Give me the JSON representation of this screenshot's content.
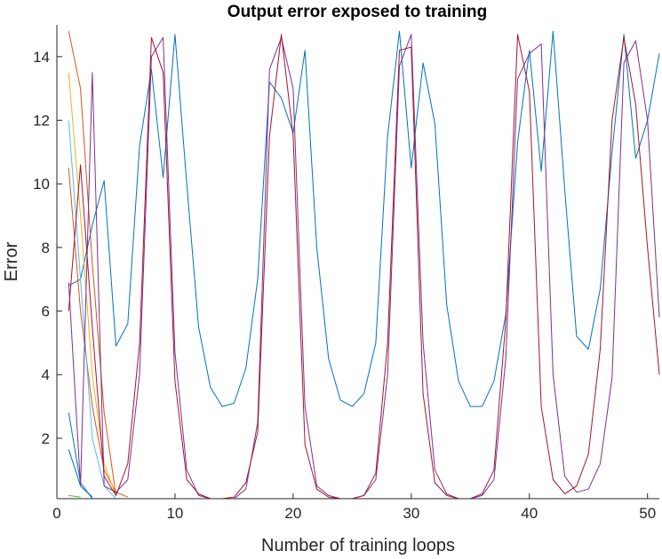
{
  "chart_data": {
    "type": "line",
    "title": "Output error exposed to training",
    "xlabel": "Number of training loops",
    "ylabel": "Error",
    "xlim": [
      0,
      51
    ],
    "ylim": [
      0.1,
      15
    ],
    "xticks": [
      0,
      10,
      20,
      30,
      40,
      50
    ],
    "yticks": [
      2,
      4,
      6,
      8,
      10,
      12,
      14
    ],
    "grid": false,
    "series": [
      {
        "color": "#0072BD",
        "x": [
          1,
          2,
          3,
          4,
          5,
          6,
          7,
          8,
          9,
          10,
          11,
          12,
          13,
          14,
          15,
          16,
          17,
          18,
          19,
          20,
          21,
          22,
          23,
          24,
          25,
          26,
          27,
          28,
          29,
          30,
          31,
          32,
          33,
          34,
          35,
          36,
          37,
          38,
          39,
          40,
          41,
          42,
          43,
          44,
          45,
          46,
          47,
          48,
          49,
          50,
          51
        ],
        "y": [
          6.8,
          7.0,
          8.7,
          10.1,
          4.9,
          5.6,
          11.2,
          13.6,
          10.2,
          14.7,
          10.0,
          5.5,
          3.6,
          3.0,
          3.1,
          4.2,
          7.0,
          13.2,
          12.7,
          11.6,
          14.2,
          8.0,
          4.5,
          3.2,
          3.0,
          3.4,
          5.0,
          11.5,
          14.8,
          10.5,
          13.8,
          11.9,
          6.2,
          3.8,
          3.0,
          3.0,
          3.8,
          5.9,
          11.3,
          14.2,
          10.4,
          14.8,
          9.8,
          5.2,
          4.8,
          6.7,
          11.0,
          14.7,
          10.8,
          12.0,
          14.1
        ]
      },
      {
        "color": "#0072BD",
        "x": [
          1,
          2,
          3
        ],
        "y": [
          1.65,
          0.5,
          0.15
        ]
      },
      {
        "color": "#0072BD",
        "x": [
          1,
          2,
          3
        ],
        "y": [
          2.8,
          0.6,
          0.1
        ]
      },
      {
        "color": "#D95319",
        "x": [
          1,
          2,
          3,
          4,
          5
        ],
        "y": [
          14.8,
          13.0,
          7.5,
          2.8,
          0.2
        ]
      },
      {
        "color": "#D95319",
        "x": [
          1,
          2,
          3,
          4,
          5,
          6
        ],
        "y": [
          10.5,
          6.0,
          3.0,
          1.0,
          0.3,
          0.15
        ]
      },
      {
        "color": "#EDB120",
        "x": [
          1,
          2,
          3,
          4,
          5
        ],
        "y": [
          13.5,
          9.0,
          4.0,
          1.2,
          0.2
        ]
      },
      {
        "color": "#4DBEEE",
        "x": [
          1,
          2,
          3,
          4,
          5
        ],
        "y": [
          12.0,
          7.0,
          2.0,
          0.5,
          0.1
        ]
      },
      {
        "color": "#77AC30",
        "x": [
          1,
          2
        ],
        "y": [
          0.2,
          0.15
        ]
      },
      {
        "color": "#7E2F8E",
        "x": [
          1,
          2,
          3,
          4,
          5,
          6,
          7,
          8,
          9,
          10,
          11,
          12,
          13,
          14,
          15,
          16,
          17,
          18,
          19,
          20,
          21,
          22,
          23,
          24,
          25,
          26,
          27,
          28,
          29,
          30,
          31,
          32,
          33,
          34,
          35,
          36,
          37,
          38,
          39,
          40,
          41,
          42,
          43,
          44,
          45,
          46,
          47,
          48,
          49,
          50,
          51
        ],
        "y": [
          6.9,
          0.5,
          13.5,
          0.5,
          0.3,
          0.7,
          4.0,
          14.0,
          14.6,
          4.7,
          1.0,
          0.2,
          0.1,
          0.1,
          0.1,
          0.4,
          2.5,
          13.6,
          14.6,
          13.0,
          3.0,
          0.5,
          0.2,
          0.1,
          0.1,
          0.2,
          0.7,
          4.0,
          13.7,
          14.7,
          5.0,
          1.0,
          0.25,
          0.1,
          0.1,
          0.2,
          0.7,
          4.5,
          13.3,
          14.1,
          14.4,
          4.0,
          0.8,
          0.3,
          0.4,
          1.2,
          3.9,
          13.8,
          14.5,
          12.0,
          5.8
        ]
      },
      {
        "color": "#A2142F",
        "x": [
          1,
          2,
          3,
          4,
          5,
          6,
          7,
          8,
          9,
          10,
          11,
          12,
          13,
          14,
          15,
          16,
          17,
          18,
          19,
          20,
          21,
          22,
          23,
          24,
          25,
          26,
          27,
          28,
          29,
          30,
          31,
          32,
          33,
          34,
          35,
          36,
          37,
          38,
          39,
          40,
          41,
          42,
          43,
          44,
          45,
          46,
          47,
          48,
          49,
          50,
          51
        ],
        "y": [
          6.0,
          10.6,
          5.5,
          0.8,
          0.2,
          1.2,
          5.0,
          14.6,
          13.5,
          3.8,
          0.7,
          0.25,
          0.1,
          0.1,
          0.15,
          0.6,
          2.2,
          11.5,
          14.7,
          11.5,
          1.8,
          0.4,
          0.15,
          0.1,
          0.1,
          0.2,
          0.9,
          5.0,
          14.2,
          14.3,
          3.4,
          0.6,
          0.2,
          0.1,
          0.1,
          0.25,
          1.0,
          5.7,
          14.7,
          12.9,
          3.0,
          0.7,
          0.25,
          0.5,
          1.5,
          4.8,
          12.0,
          14.6,
          12.5,
          8.0,
          4.0
        ]
      }
    ]
  }
}
